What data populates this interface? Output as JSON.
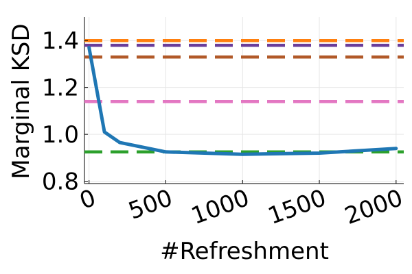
{
  "chart_data": {
    "type": "line",
    "title": "",
    "xlabel": "#Refreshment",
    "ylabel": "Marginal KSD",
    "xlim": [
      -30,
      2050
    ],
    "ylim": [
      0.79,
      1.5
    ],
    "xticks": [
      0,
      500,
      1000,
      1500,
      2000
    ],
    "xtick_labels": [
      "0",
      "500",
      "1000",
      "1500",
      "2000"
    ],
    "yticks": [
      0.8,
      1.0,
      1.2,
      1.4
    ],
    "ytick_labels": [
      "0.8",
      "1.0",
      "1.2",
      "1.4"
    ],
    "grid": true,
    "legend": "none",
    "series": [
      {
        "style": "solid",
        "color": "#1f77b4",
        "x": [
          0,
          100,
          200,
          500,
          1000,
          1500,
          2000
        ],
        "y": [
          1.37,
          1.01,
          0.965,
          0.925,
          0.915,
          0.92,
          0.94
        ]
      },
      {
        "style": "dashed",
        "color": "#ff7f0e",
        "x": [
          -30,
          2050
        ],
        "y": [
          1.4,
          1.4
        ]
      },
      {
        "style": "dashed",
        "color": "#6a3d9a",
        "x": [
          -30,
          2050
        ],
        "y": [
          1.38,
          1.38
        ]
      },
      {
        "style": "dashed",
        "color": "#b15928",
        "x": [
          -30,
          2050
        ],
        "y": [
          1.33,
          1.33
        ]
      },
      {
        "style": "dashed",
        "color": "#e377c2",
        "x": [
          -30,
          2050
        ],
        "y": [
          1.14,
          1.14
        ]
      },
      {
        "style": "dashed",
        "color": "#2ca02c",
        "x": [
          -30,
          2050
        ],
        "y": [
          0.925,
          0.925
        ]
      }
    ]
  }
}
